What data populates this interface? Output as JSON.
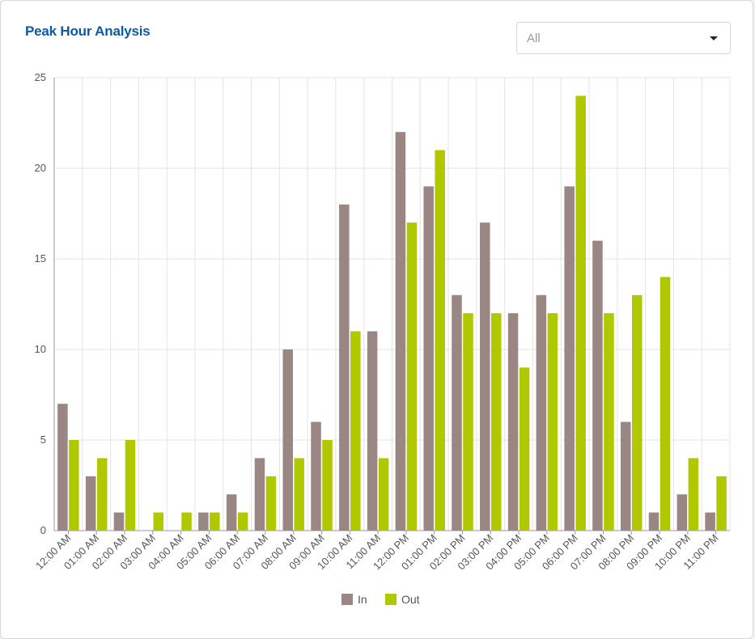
{
  "card": {
    "title": "Peak Hour Analysis"
  },
  "filter": {
    "selected": "All"
  },
  "chart_data": {
    "type": "bar",
    "categories": [
      "12:00 AM",
      "01:00 AM",
      "02:00 AM",
      "03:00 AM",
      "04:00 AM",
      "05:00 AM",
      "06:00 AM",
      "07:00 AM",
      "08:00 AM",
      "09:00 AM",
      "10:00 AM",
      "11:00 AM",
      "12:00 PM",
      "01:00 PM",
      "02:00 PM",
      "03:00 PM",
      "04:00 PM",
      "05:00 PM",
      "06:00 PM",
      "07:00 PM",
      "08:00 PM",
      "09:00 PM",
      "10:00 PM",
      "11:00 PM"
    ],
    "series": [
      {
        "name": "In",
        "color": "#9a8683",
        "values": [
          7,
          3,
          1,
          0,
          0,
          1,
          2,
          4,
          10,
          6,
          18,
          11,
          22,
          19,
          13,
          17,
          12,
          13,
          19,
          16,
          6,
          1,
          2,
          1
        ]
      },
      {
        "name": "Out",
        "color": "#b0c800",
        "values": [
          5,
          4,
          5,
          1,
          1,
          1,
          1,
          3,
          4,
          5,
          11,
          4,
          17,
          21,
          12,
          12,
          9,
          12,
          24,
          12,
          13,
          14,
          4,
          3
        ]
      }
    ],
    "yticks": [
      0,
      5,
      10,
      15,
      20,
      25
    ],
    "ylim": [
      0,
      25
    ],
    "grid": true,
    "legend_position": "bottom-center"
  }
}
